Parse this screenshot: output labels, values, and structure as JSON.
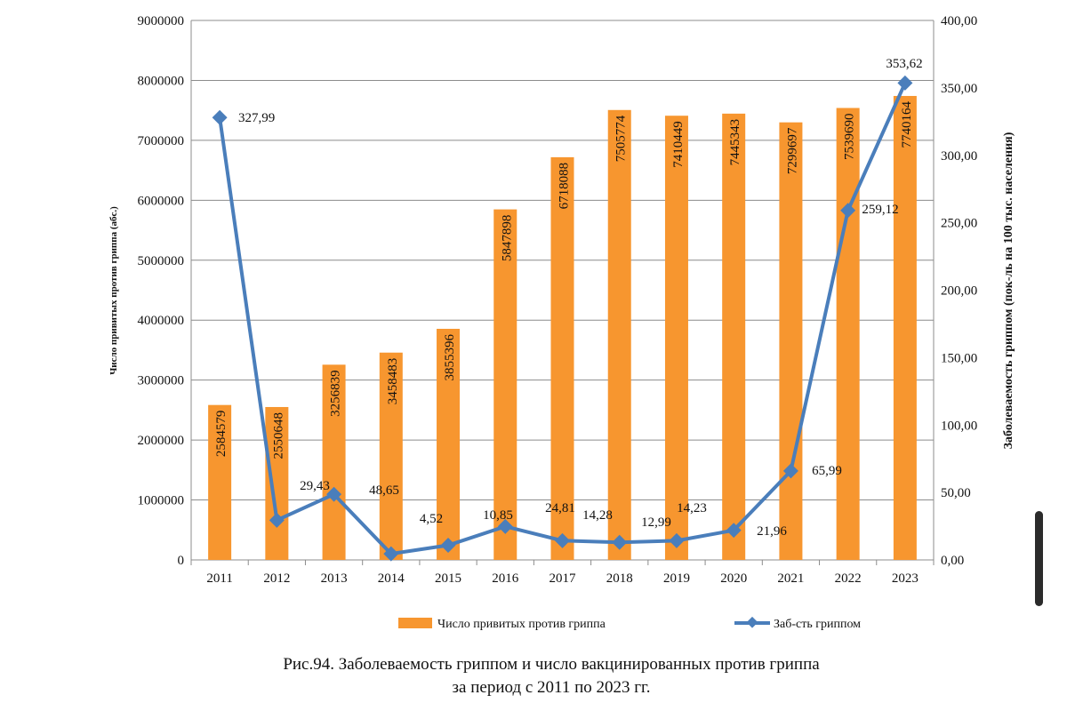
{
  "chart_data": {
    "type": "bar",
    "title": "Рис.94. Заболеваемость гриппом и число вакцинированных против гриппа",
    "subtitle": "за период с 2011 по 2023 гг.",
    "ylabel": "Число привитых против гриппа (абс.)",
    "y2label": "Заболеваемость гриппом (пок-ль на 100 тыс. населения)",
    "ylim": [
      0,
      9000000
    ],
    "y2lim": [
      0,
      400
    ],
    "yticks": [
      "0",
      "1000000",
      "2000000",
      "3000000",
      "4000000",
      "5000000",
      "6000000",
      "7000000",
      "8000000",
      "9000000"
    ],
    "y2ticks": [
      "0,00",
      "50,00",
      "100,00",
      "150,00",
      "200,00",
      "250,00",
      "300,00",
      "350,00",
      "400,00"
    ],
    "categories": [
      "2011",
      "2012",
      "2013",
      "2014",
      "2015",
      "2016",
      "2017",
      "2018",
      "2019",
      "2020",
      "2021",
      "2022",
      "2023"
    ],
    "series": [
      {
        "name": "Число привитых против гриппа",
        "type": "bar",
        "color": "#F7962F",
        "values": [
          2584579,
          2550648,
          3256839,
          3458483,
          3855396,
          5847898,
          6718088,
          7505774,
          7410449,
          7445343,
          7299697,
          7539690,
          7740164
        ]
      },
      {
        "name": "Заб-сть гриппом",
        "type": "line",
        "axis": "right",
        "color": "#4A7EBB",
        "values": [
          327.99,
          29.43,
          48.65,
          4.52,
          10.85,
          24.81,
          14.28,
          12.99,
          14.23,
          21.96,
          65.99,
          259.12,
          353.62
        ],
        "labels": [
          "327,99",
          "29,43",
          "48,65",
          "4,52",
          "10,85",
          "24,81",
          "14,28",
          "12,99",
          "14,23",
          "21,96",
          "65,99",
          "259,12",
          "353,62"
        ]
      }
    ],
    "grid": true,
    "legend": "bottom"
  }
}
